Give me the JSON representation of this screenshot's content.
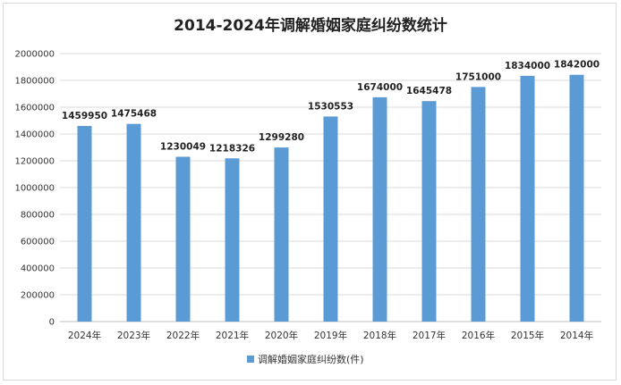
{
  "chart_data": {
    "type": "bar",
    "title": "2014-2024年调解婚姻家庭纠纷数统计",
    "categories": [
      "2024年",
      "2023年",
      "2022年",
      "2021年",
      "2020年",
      "2019年",
      "2018年",
      "2017年",
      "2016年",
      "2015年",
      "2014年"
    ],
    "series": [
      {
        "name": "调解婚姻家庭纠纷数(件)",
        "values": [
          1459950,
          1475468,
          1230049,
          1218326,
          1299280,
          1530553,
          1674000,
          1645478,
          1751000,
          1834000,
          1842000
        ],
        "color": "#5b9bd5"
      }
    ],
    "data_labels": [
      "1459950",
      "1475468",
      "1230049",
      "1218326",
      "1299280",
      "1530553",
      "1674000",
      "1645478",
      "1751000",
      "1834000",
      "1842000"
    ],
    "yticks": [
      "0",
      "200000",
      "400000",
      "600000",
      "800000",
      "1000000",
      "1200000",
      "1400000",
      "1600000",
      "1800000",
      "2000000"
    ],
    "ylim": [
      0,
      2000000
    ],
    "xlabel": "",
    "ylabel": "",
    "grid": true,
    "legend_position": "bottom"
  }
}
